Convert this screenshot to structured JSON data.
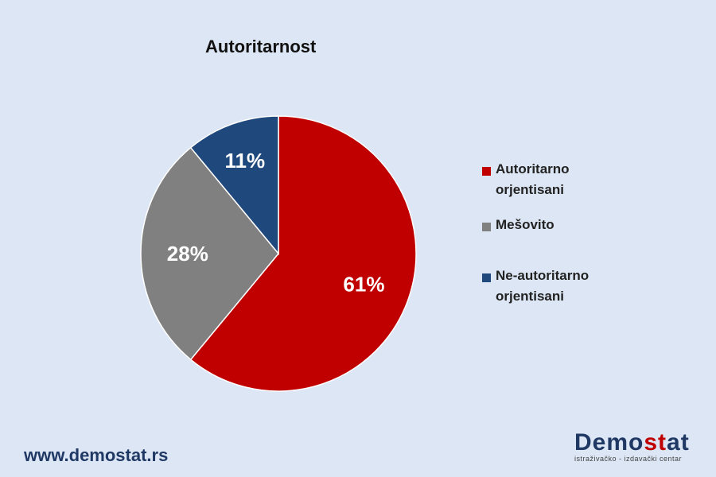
{
  "chart_data": {
    "type": "pie",
    "title": "Autoritarnost",
    "slices": [
      {
        "name": "Autoritarno orjentisani",
        "label_line1": "Autoritarno",
        "label_line2": "orjentisani",
        "value": 61,
        "display": "61%",
        "color": "#c00000"
      },
      {
        "name": "Mešovito",
        "label_line1": "Mešovito",
        "label_line2": "",
        "value": 28,
        "display": "28%",
        "color": "#808080"
      },
      {
        "name": "Ne-autoritarno orjentisani",
        "label_line1": "Ne-autoritarno",
        "label_line2": "orjentisani",
        "value": 11,
        "display": "11%",
        "color": "#1f497d"
      }
    ],
    "legend_position": "right",
    "start_angle_deg": 0,
    "direction": "clockwise"
  },
  "footer": {
    "url": "www.demostat.rs"
  },
  "logo": {
    "part1": "Demo",
    "part2": "st",
    "part3": "at",
    "tagline": "istraživačko - izdavački  centar"
  }
}
